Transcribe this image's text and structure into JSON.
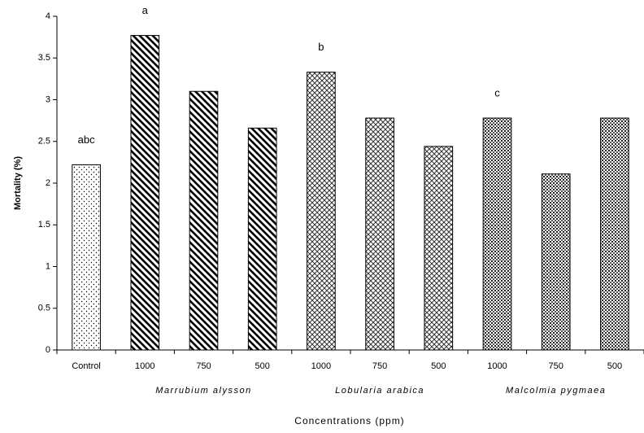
{
  "chart_data": {
    "type": "bar",
    "categories": [
      "Control",
      "1000",
      "750",
      "500",
      "1000",
      "750",
      "500",
      "1000",
      "750",
      "500"
    ],
    "values": [
      2.22,
      3.77,
      3.1,
      2.66,
      3.33,
      2.78,
      2.44,
      2.78,
      2.11,
      2.78
    ],
    "groups": [
      {
        "name": "Marrubium alysson",
        "indices": [
          1,
          2,
          3
        ]
      },
      {
        "name": "Lobularia arabica",
        "indices": [
          4,
          5,
          6
        ]
      },
      {
        "name": "Malcolmia pygmaea",
        "indices": [
          7,
          8,
          9
        ]
      }
    ],
    "annotations": [
      {
        "text": "abc",
        "index": 0
      },
      {
        "text": "a",
        "index": 1
      },
      {
        "text": "b",
        "index": 4
      },
      {
        "text": "c",
        "index": 7
      }
    ],
    "y_label": "Mortality (%)",
    "x_label": "Concentrations (ppm)",
    "ylim": [
      0,
      4
    ],
    "yticks": [
      0,
      0.5,
      1,
      1.5,
      2,
      2.5,
      3,
      3.5,
      4
    ],
    "grid": false
  }
}
